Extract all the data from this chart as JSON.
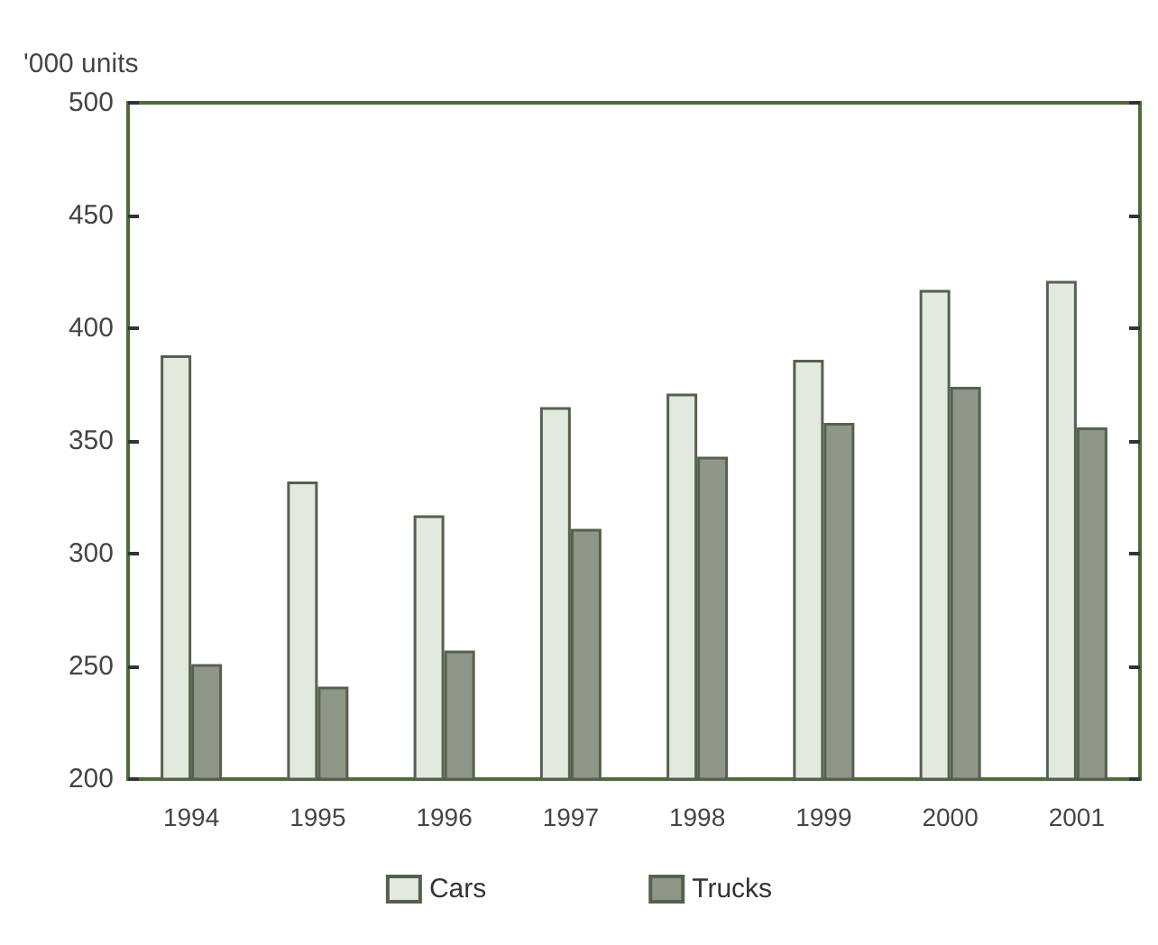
{
  "chart_data": {
    "type": "bar",
    "ylabel": "'000 units",
    "categories": [
      "1994",
      "1995",
      "1996",
      "1997",
      "1998",
      "1999",
      "2000",
      "2001"
    ],
    "series": [
      {
        "name": "Cars",
        "color": "#e2e9de",
        "values": [
          388,
          332,
          317,
          365,
          371,
          386,
          417,
          421
        ]
      },
      {
        "name": "Trucks",
        "color": "#8e968a",
        "values": [
          251,
          241,
          257,
          311,
          343,
          358,
          374,
          356
        ]
      }
    ],
    "ylim": [
      200,
      500
    ],
    "yticks": [
      200,
      250,
      300,
      350,
      400,
      450,
      500
    ],
    "grid": false,
    "legend": "bottom"
  }
}
